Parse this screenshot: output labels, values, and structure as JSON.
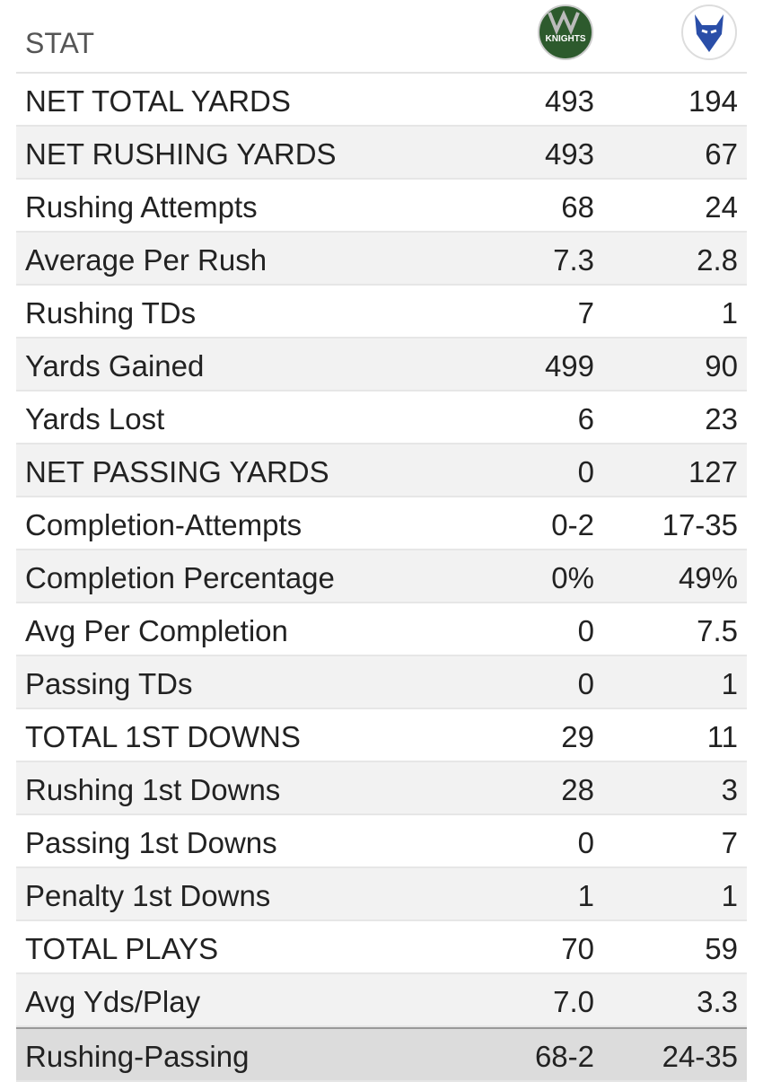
{
  "header": {
    "stat": "STAT",
    "logo_text": "KNIGHTS"
  },
  "table": {
    "rows": [
      [
        "NET TOTAL YARDS",
        "493",
        "194"
      ],
      [
        "NET RUSHING YARDS",
        "493",
        "67"
      ],
      [
        "Rushing Attempts",
        "68",
        "24"
      ],
      [
        "Average Per Rush",
        "7.3",
        "2.8"
      ],
      [
        "Rushing TDs",
        "7",
        "1"
      ],
      [
        "Yards Gained",
        "499",
        "90"
      ],
      [
        "Yards Lost",
        "6",
        "23"
      ],
      [
        "NET PASSING YARDS",
        "0",
        "127"
      ],
      [
        "Completion-Attempts",
        "0-2",
        "17-35"
      ],
      [
        "Completion Percentage",
        "0%",
        "49%"
      ],
      [
        "Avg Per Completion",
        "0",
        "7.5"
      ],
      [
        "Passing TDs",
        "0",
        "1"
      ],
      [
        "TOTAL 1ST DOWNS",
        "29",
        "11"
      ],
      [
        "Rushing 1st Downs",
        "28",
        "3"
      ],
      [
        "Passing 1st Downs",
        "0",
        "7"
      ],
      [
        "Penalty 1st Downs",
        "1",
        "1"
      ],
      [
        "TOTAL PLAYS",
        "70",
        "59"
      ],
      [
        "Avg Yds/Play",
        "7.0",
        "3.3"
      ],
      [
        "Rushing-Passing",
        "68-2",
        "24-35"
      ]
    ]
  }
}
